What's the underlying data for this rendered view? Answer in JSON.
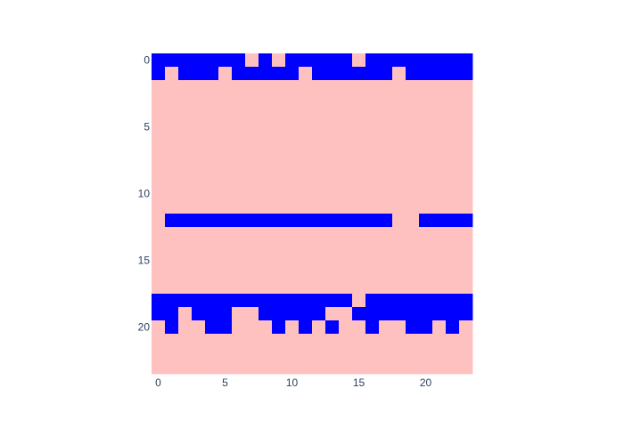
{
  "chart_data": {
    "type": "heatmap",
    "rows": 24,
    "cols": 24,
    "colors": {
      "0": "#ffc0c0",
      "1": "#0000ff"
    },
    "y_ticks": [
      0,
      5,
      10,
      15,
      20
    ],
    "x_ticks": [
      0,
      5,
      10,
      15,
      20
    ],
    "y_reversed": true,
    "z": [
      [
        1,
        1,
        1,
        1,
        1,
        1,
        1,
        0,
        1,
        0,
        1,
        1,
        1,
        1,
        1,
        0,
        1,
        1,
        1,
        1,
        1,
        1,
        1,
        1
      ],
      [
        1,
        0,
        1,
        1,
        1,
        0,
        1,
        1,
        1,
        1,
        1,
        0,
        1,
        1,
        1,
        1,
        1,
        1,
        0,
        1,
        1,
        1,
        1,
        1
      ],
      [
        0,
        0,
        0,
        0,
        0,
        0,
        0,
        0,
        0,
        0,
        0,
        0,
        0,
        0,
        0,
        0,
        0,
        0,
        0,
        0,
        0,
        0,
        0,
        0
      ],
      [
        0,
        0,
        0,
        0,
        0,
        0,
        0,
        0,
        0,
        0,
        0,
        0,
        0,
        0,
        0,
        0,
        0,
        0,
        0,
        0,
        0,
        0,
        0,
        0
      ],
      [
        0,
        0,
        0,
        0,
        0,
        0,
        0,
        0,
        0,
        0,
        0,
        0,
        0,
        0,
        0,
        0,
        0,
        0,
        0,
        0,
        0,
        0,
        0,
        0
      ],
      [
        0,
        0,
        0,
        0,
        0,
        0,
        0,
        0,
        0,
        0,
        0,
        0,
        0,
        0,
        0,
        0,
        0,
        0,
        0,
        0,
        0,
        0,
        0,
        0
      ],
      [
        0,
        0,
        0,
        0,
        0,
        0,
        0,
        0,
        0,
        0,
        0,
        0,
        0,
        0,
        0,
        0,
        0,
        0,
        0,
        0,
        0,
        0,
        0,
        0
      ],
      [
        0,
        0,
        0,
        0,
        0,
        0,
        0,
        0,
        0,
        0,
        0,
        0,
        0,
        0,
        0,
        0,
        0,
        0,
        0,
        0,
        0,
        0,
        0,
        0
      ],
      [
        0,
        0,
        0,
        0,
        0,
        0,
        0,
        0,
        0,
        0,
        0,
        0,
        0,
        0,
        0,
        0,
        0,
        0,
        0,
        0,
        0,
        0,
        0,
        0
      ],
      [
        0,
        0,
        0,
        0,
        0,
        0,
        0,
        0,
        0,
        0,
        0,
        0,
        0,
        0,
        0,
        0,
        0,
        0,
        0,
        0,
        0,
        0,
        0,
        0
      ],
      [
        0,
        0,
        0,
        0,
        0,
        0,
        0,
        0,
        0,
        0,
        0,
        0,
        0,
        0,
        0,
        0,
        0,
        0,
        0,
        0,
        0,
        0,
        0,
        0
      ],
      [
        0,
        0,
        0,
        0,
        0,
        0,
        0,
        0,
        0,
        0,
        0,
        0,
        0,
        0,
        0,
        0,
        0,
        0,
        0,
        0,
        0,
        0,
        0,
        0
      ],
      [
        0,
        1,
        1,
        1,
        1,
        1,
        1,
        1,
        1,
        1,
        1,
        1,
        1,
        1,
        1,
        1,
        1,
        1,
        0,
        0,
        1,
        1,
        1,
        1
      ],
      [
        0,
        0,
        0,
        0,
        0,
        0,
        0,
        0,
        0,
        0,
        0,
        0,
        0,
        0,
        0,
        0,
        0,
        0,
        0,
        0,
        0,
        0,
        0,
        0
      ],
      [
        0,
        0,
        0,
        0,
        0,
        0,
        0,
        0,
        0,
        0,
        0,
        0,
        0,
        0,
        0,
        0,
        0,
        0,
        0,
        0,
        0,
        0,
        0,
        0
      ],
      [
        0,
        0,
        0,
        0,
        0,
        0,
        0,
        0,
        0,
        0,
        0,
        0,
        0,
        0,
        0,
        0,
        0,
        0,
        0,
        0,
        0,
        0,
        0,
        0
      ],
      [
        0,
        0,
        0,
        0,
        0,
        0,
        0,
        0,
        0,
        0,
        0,
        0,
        0,
        0,
        0,
        0,
        0,
        0,
        0,
        0,
        0,
        0,
        0,
        0
      ],
      [
        0,
        0,
        0,
        0,
        0,
        0,
        0,
        0,
        0,
        0,
        0,
        0,
        0,
        0,
        0,
        0,
        0,
        0,
        0,
        0,
        0,
        0,
        0,
        0
      ],
      [
        1,
        1,
        1,
        1,
        1,
        1,
        1,
        1,
        1,
        1,
        1,
        1,
        1,
        1,
        1,
        0,
        1,
        1,
        1,
        1,
        1,
        1,
        1,
        1
      ],
      [
        1,
        1,
        0,
        1,
        1,
        1,
        0,
        0,
        1,
        1,
        1,
        1,
        1,
        0,
        0,
        1,
        1,
        1,
        1,
        1,
        1,
        1,
        1,
        1
      ],
      [
        0,
        1,
        0,
        0,
        1,
        1,
        0,
        0,
        0,
        1,
        0,
        1,
        0,
        1,
        0,
        0,
        1,
        0,
        0,
        1,
        1,
        0,
        1,
        0
      ],
      [
        0,
        0,
        0,
        0,
        0,
        0,
        0,
        0,
        0,
        0,
        0,
        0,
        0,
        0,
        0,
        0,
        0,
        0,
        0,
        0,
        0,
        0,
        0,
        0
      ],
      [
        0,
        0,
        0,
        0,
        0,
        0,
        0,
        0,
        0,
        0,
        0,
        0,
        0,
        0,
        0,
        0,
        0,
        0,
        0,
        0,
        0,
        0,
        0,
        0
      ],
      [
        0,
        0,
        0,
        0,
        0,
        0,
        0,
        0,
        0,
        0,
        0,
        0,
        0,
        0,
        0,
        0,
        0,
        0,
        0,
        0,
        0,
        0,
        0,
        0
      ]
    ]
  }
}
